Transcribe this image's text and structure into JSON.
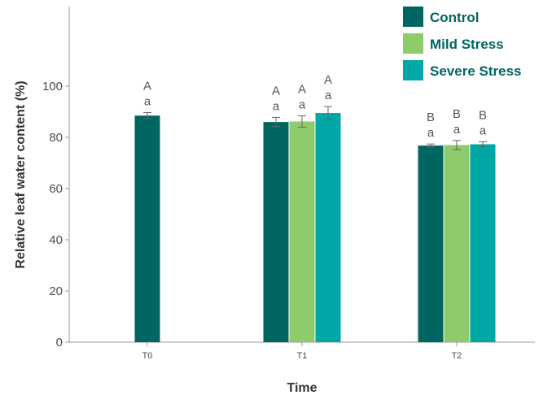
{
  "chart_data": {
    "type": "bar",
    "categories": [
      "T0",
      "T1",
      "T2"
    ],
    "xlabel": "Time",
    "ylabel": "Relative leaf water content (%)",
    "ylim": [
      0,
      100
    ],
    "yticks": [
      0,
      20,
      40,
      60,
      80,
      100
    ],
    "grid": false,
    "legend_position": "top-right",
    "series": [
      {
        "name": "Control",
        "color": "#006661",
        "values": [
          88.5,
          86,
          76.8
        ],
        "errors": [
          1.2,
          1.8,
          0.6
        ],
        "letters_upper": [
          "A",
          "A",
          "B"
        ],
        "letters_lower": [
          "a",
          "a",
          "a"
        ]
      },
      {
        "name": "Mild Stress",
        "color": "#8dcb6b",
        "values": [
          null,
          86.2,
          77
        ],
        "errors": [
          null,
          2.2,
          1.8
        ],
        "letters_upper": [
          null,
          "A",
          "B"
        ],
        "letters_lower": [
          null,
          "a",
          "a"
        ]
      },
      {
        "name": "Severe Stress",
        "color": "#00a7a7",
        "values": [
          null,
          89.5,
          77.3
        ],
        "errors": [
          null,
          2.5,
          1.0
        ],
        "letters_upper": [
          null,
          "A",
          "B"
        ],
        "letters_lower": [
          null,
          "a",
          "a"
        ]
      }
    ]
  }
}
